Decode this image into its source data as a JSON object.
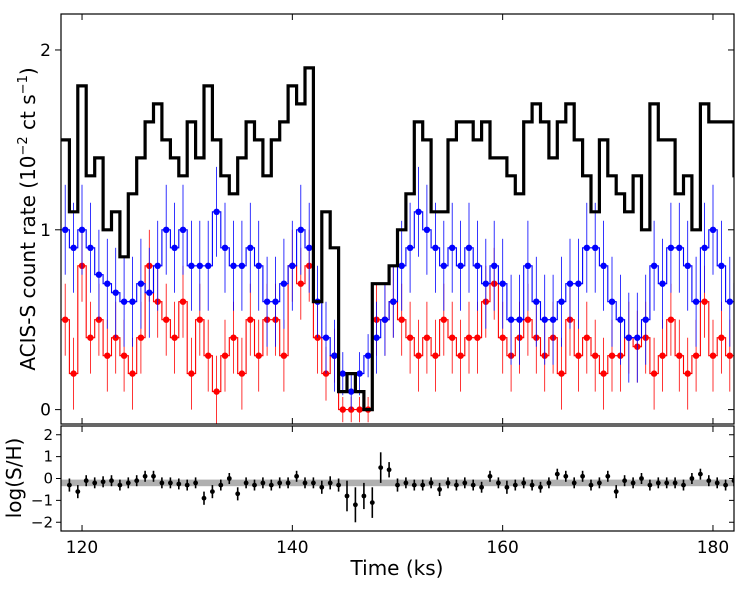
{
  "chart_data": [
    {
      "type": "line",
      "title": "",
      "xlabel": "Time (ks)",
      "ylabel": "ACIS-S count rate (10⁻² ct s⁻¹)",
      "ylabel_parts": {
        "main": "ACIS-S count rate (10",
        "exp1": "−2",
        "mid": " ct s",
        "exp2": "−1",
        "end": ")"
      },
      "xlim": [
        118,
        182
      ],
      "ylim": [
        -0.08,
        2.2
      ],
      "xticks": [
        120,
        140,
        160,
        180
      ],
      "xtick_labels": [
        "120",
        "140",
        "160",
        "180"
      ],
      "yticks": [
        0,
        1,
        2
      ],
      "ytick_labels": [
        "0",
        "1",
        "2"
      ],
      "bin_start": 118,
      "bin_width": 0.8,
      "series": [
        {
          "name": "total",
          "color": "#000000",
          "style": "steps",
          "values": [
            1.5,
            1.1,
            1.8,
            1.3,
            1.4,
            1.0,
            1.1,
            0.85,
            1.2,
            1.4,
            1.6,
            1.7,
            1.5,
            1.4,
            1.3,
            1.6,
            1.4,
            1.8,
            1.5,
            1.3,
            1.2,
            1.4,
            1.6,
            1.5,
            1.3,
            1.5,
            1.6,
            1.8,
            1.7,
            1.9,
            0.6,
            1.1,
            0.9,
            0.1,
            0.2,
            0.1,
            0.0,
            0.7,
            0.7,
            0.8,
            1.0,
            1.2,
            1.6,
            1.5,
            1.1,
            1.1,
            1.5,
            1.6,
            1.6,
            1.5,
            1.6,
            1.4,
            1.4,
            1.3,
            1.2,
            1.6,
            1.7,
            1.6,
            1.4,
            1.6,
            1.7,
            1.5,
            1.3,
            1.1,
            1.5,
            1.3,
            1.2,
            1.1,
            1.3,
            1.0,
            1.7,
            1.5,
            1.5,
            1.2,
            1.3,
            1.0,
            1.7,
            1.6,
            1.6,
            1.6,
            1.3,
            1.2
          ]
        },
        {
          "name": "soft",
          "color": "#0000ff",
          "style": "steps-errorbars",
          "values": [
            1.0,
            0.9,
            1.0,
            0.9,
            0.75,
            0.7,
            0.65,
            0.6,
            0.6,
            0.7,
            0.65,
            0.8,
            1.0,
            0.9,
            1.0,
            0.8,
            0.8,
            0.8,
            1.1,
            0.9,
            0.8,
            0.8,
            0.9,
            0.8,
            0.6,
            0.6,
            0.7,
            0.8,
            1.0,
            0.9,
            0.6,
            0.4,
            0.3,
            0.2,
            0.1,
            0.2,
            0.3,
            0.4,
            0.5,
            0.6,
            0.8,
            0.9,
            1.1,
            1.0,
            0.9,
            0.8,
            0.9,
            0.8,
            0.9,
            0.8,
            0.7,
            0.8,
            0.7,
            0.5,
            0.5,
            0.8,
            0.6,
            0.5,
            0.5,
            0.6,
            0.7,
            0.7,
            0.9,
            0.9,
            0.8,
            0.6,
            0.5,
            0.4,
            0.4,
            0.5,
            0.8,
            0.7,
            0.9,
            0.9,
            0.8,
            0.6,
            0.9,
            1.0,
            0.8,
            0.6,
            0.7,
            0.7
          ],
          "errors": [
            0.25,
            0.25,
            0.25,
            0.25,
            0.25,
            0.25,
            0.25,
            0.25,
            0.25,
            0.25,
            0.25,
            0.25,
            0.25,
            0.25,
            0.25,
            0.25,
            0.25,
            0.25,
            0.25,
            0.25,
            0.25,
            0.25,
            0.25,
            0.25,
            0.25,
            0.25,
            0.25,
            0.25,
            0.25,
            0.25,
            0.2,
            0.2,
            0.2,
            0.12,
            0.1,
            0.12,
            0.12,
            0.2,
            0.2,
            0.2,
            0.25,
            0.25,
            0.25,
            0.25,
            0.25,
            0.25,
            0.25,
            0.25,
            0.25,
            0.25,
            0.25,
            0.25,
            0.25,
            0.25,
            0.25,
            0.25,
            0.25,
            0.25,
            0.25,
            0.25,
            0.25,
            0.25,
            0.25,
            0.25,
            0.25,
            0.25,
            0.25,
            0.25,
            0.25,
            0.25,
            0.25,
            0.25,
            0.25,
            0.25,
            0.25,
            0.25,
            0.25,
            0.25,
            0.25,
            0.25,
            0.25,
            0.25
          ]
        },
        {
          "name": "hard",
          "color": "#ff0000",
          "style": "steps-errorbars",
          "values": [
            0.5,
            0.2,
            0.8,
            0.4,
            0.5,
            0.3,
            0.4,
            0.3,
            0.2,
            0.4,
            0.8,
            0.6,
            0.5,
            0.4,
            0.6,
            0.2,
            0.5,
            0.3,
            0.1,
            0.3,
            0.4,
            0.2,
            0.5,
            0.3,
            0.5,
            0.5,
            0.3,
            0.8,
            0.7,
            0.8,
            0.4,
            0.2,
            0.3,
            0.0,
            0.0,
            0.0,
            0.0,
            0.5,
            0.5,
            0.6,
            0.5,
            0.4,
            0.3,
            0.4,
            0.3,
            0.5,
            0.4,
            0.3,
            0.4,
            0.4,
            0.6,
            0.7,
            0.4,
            0.3,
            0.4,
            0.5,
            0.4,
            0.3,
            0.4,
            0.2,
            0.5,
            0.3,
            0.4,
            0.3,
            0.2,
            0.3,
            0.3,
            0.4,
            0.35,
            0.4,
            0.2,
            0.3,
            0.5,
            0.3,
            0.2,
            0.3,
            0.6,
            0.3,
            0.4,
            0.3,
            0.3,
            0.2
          ],
          "errors": [
            0.2,
            0.2,
            0.2,
            0.2,
            0.2,
            0.2,
            0.2,
            0.2,
            0.2,
            0.2,
            0.2,
            0.2,
            0.2,
            0.2,
            0.2,
            0.2,
            0.2,
            0.2,
            0.2,
            0.2,
            0.2,
            0.2,
            0.2,
            0.2,
            0.2,
            0.2,
            0.2,
            0.2,
            0.2,
            0.2,
            0.2,
            0.15,
            0.15,
            0.07,
            0.07,
            0.07,
            0.07,
            0.2,
            0.2,
            0.2,
            0.2,
            0.2,
            0.2,
            0.2,
            0.2,
            0.2,
            0.2,
            0.2,
            0.2,
            0.2,
            0.2,
            0.2,
            0.2,
            0.2,
            0.2,
            0.2,
            0.2,
            0.2,
            0.2,
            0.2,
            0.2,
            0.2,
            0.2,
            0.2,
            0.2,
            0.2,
            0.2,
            0.2,
            0.2,
            0.2,
            0.2,
            0.2,
            0.2,
            0.2,
            0.2,
            0.2,
            0.2,
            0.2,
            0.2,
            0.2,
            0.2,
            0.2
          ]
        }
      ]
    },
    {
      "type": "scatter",
      "title": "",
      "xlabel": "Time (ks)",
      "ylabel": "log(S/H)",
      "xlim": [
        118,
        182
      ],
      "ylim": [
        -2.4,
        2.4
      ],
      "xticks": [
        120,
        140,
        160,
        180
      ],
      "yticks": [
        -2,
        -1,
        0,
        1,
        2
      ],
      "ytick_labels": [
        "−2",
        "−1",
        "0",
        "1",
        "2"
      ],
      "band": {
        "center": -0.2,
        "half_width": 0.15,
        "color": "#b0b0b0"
      },
      "point_x_start": 118.8,
      "point_x_step": 0.8,
      "values": [
        -0.3,
        -0.6,
        -0.1,
        -0.2,
        -0.15,
        -0.1,
        -0.3,
        -0.2,
        -0.1,
        0.1,
        0.1,
        -0.2,
        -0.2,
        -0.25,
        -0.3,
        -0.2,
        -0.9,
        -0.6,
        -0.3,
        0.0,
        -0.7,
        -0.2,
        -0.3,
        -0.2,
        -0.3,
        -0.2,
        -0.2,
        0.1,
        -0.2,
        -0.2,
        -0.4,
        -0.2,
        -0.3,
        -0.8,
        -1.2,
        -0.8,
        -1.1,
        0.5,
        0.4,
        -0.3,
        -0.2,
        -0.3,
        -0.3,
        -0.2,
        -0.5,
        -0.2,
        -0.3,
        -0.2,
        -0.3,
        -0.4,
        0.1,
        -0.2,
        -0.4,
        -0.3,
        -0.2,
        -0.3,
        -0.4,
        -0.2,
        0.2,
        0.1,
        -0.2,
        0.1,
        -0.3,
        -0.2,
        0.1,
        -0.6,
        -0.1,
        -0.2,
        0.0,
        -0.3,
        -0.2,
        -0.2,
        -0.2,
        -0.3,
        0.0,
        0.2,
        -0.1,
        -0.2,
        -0.3,
        -0.1,
        -0.2,
        0.0
      ],
      "errors": [
        0.3,
        0.3,
        0.25,
        0.25,
        0.25,
        0.25,
        0.25,
        0.25,
        0.25,
        0.25,
        0.25,
        0.25,
        0.25,
        0.25,
        0.25,
        0.25,
        0.3,
        0.3,
        0.25,
        0.25,
        0.3,
        0.25,
        0.25,
        0.25,
        0.25,
        0.25,
        0.25,
        0.25,
        0.25,
        0.25,
        0.3,
        0.3,
        0.3,
        0.7,
        0.8,
        0.6,
        0.7,
        0.7,
        0.35,
        0.3,
        0.25,
        0.25,
        0.25,
        0.25,
        0.3,
        0.25,
        0.25,
        0.25,
        0.25,
        0.25,
        0.25,
        0.25,
        0.3,
        0.25,
        0.25,
        0.25,
        0.25,
        0.25,
        0.25,
        0.25,
        0.25,
        0.25,
        0.25,
        0.25,
        0.25,
        0.3,
        0.25,
        0.25,
        0.25,
        0.25,
        0.25,
        0.25,
        0.25,
        0.25,
        0.25,
        0.25,
        0.25,
        0.25,
        0.25,
        0.25,
        0.25,
        0.25
      ]
    }
  ]
}
